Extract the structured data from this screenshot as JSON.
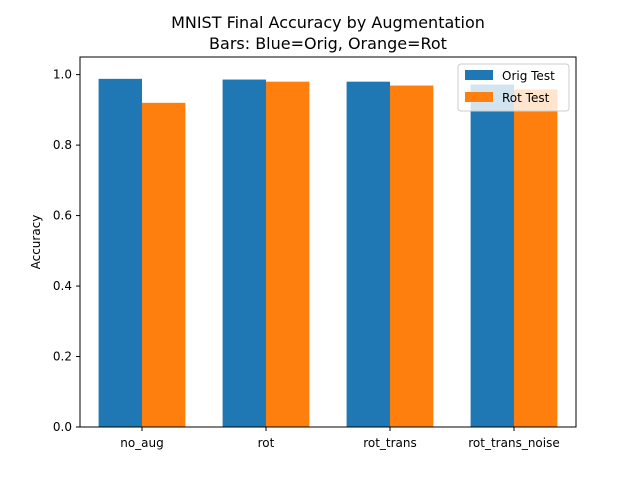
{
  "chart_data": {
    "type": "bar",
    "title": "MNIST Final Accuracy by Augmentation",
    "subtitle": "Bars: Blue=Orig, Orange=Rot",
    "xlabel": "",
    "ylabel": "Accuracy",
    "ylim": [
      0,
      1.0
    ],
    "yticks": [
      "0.0",
      "0.2",
      "0.4",
      "0.6",
      "0.8",
      "1.0"
    ],
    "categories": [
      "no_aug",
      "rot",
      "rot_trans",
      "rot_trans_noise"
    ],
    "series": [
      {
        "name": "Orig Test",
        "color": "#1f77b4",
        "values": [
          0.988,
          0.986,
          0.98,
          0.972
        ]
      },
      {
        "name": "Rot Test",
        "color": "#ff7f0e",
        "values": [
          0.92,
          0.98,
          0.969,
          0.958
        ]
      }
    ],
    "legend_position": "top-right",
    "grid": false
  }
}
